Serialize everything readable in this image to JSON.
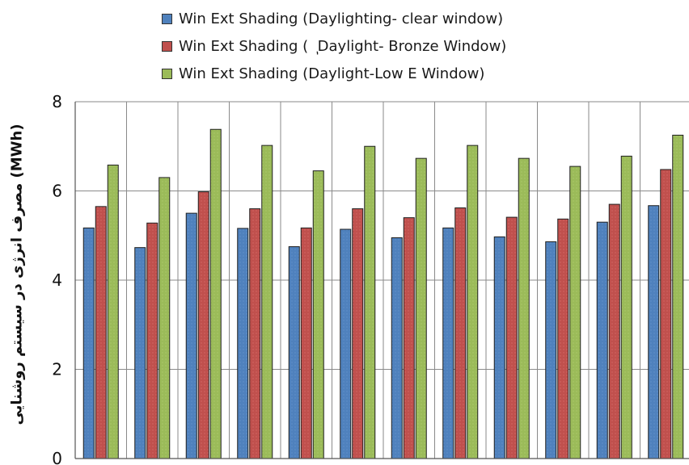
{
  "chart_data": {
    "type": "bar",
    "title": "",
    "xlabel": "",
    "ylabel": "مصرف انرژی در سیستم روشنایی (MWh)",
    "ylim": [
      0,
      8
    ],
    "yticks": [
      0,
      2,
      4,
      6,
      8
    ],
    "grid": true,
    "legend_position": "top",
    "categories": [
      "",
      "",
      "",
      "",
      "",
      "",
      "",
      "",
      "",
      "",
      "",
      ""
    ],
    "series": [
      {
        "name": "Win Ext Shading (Daylighting- clear window)",
        "color": "#4f81bd",
        "values": [
          5.17,
          4.73,
          5.5,
          5.16,
          4.75,
          5.14,
          4.95,
          5.17,
          4.97,
          4.86,
          5.3,
          5.67
        ]
      },
      {
        "name": "Win Ext Shading (  ٖ Daylight- Bronze Window)",
        "color": "#c0504d",
        "values": [
          5.65,
          5.28,
          5.98,
          5.6,
          5.17,
          5.6,
          5.4,
          5.62,
          5.41,
          5.37,
          5.7,
          6.48
        ]
      },
      {
        "name": "Win Ext Shading (Daylight-Low E Window)",
        "color": "#9bbb59",
        "values": [
          6.58,
          6.3,
          7.38,
          7.02,
          6.45,
          7.0,
          6.73,
          7.02,
          6.73,
          6.55,
          6.78,
          7.25
        ]
      }
    ]
  }
}
